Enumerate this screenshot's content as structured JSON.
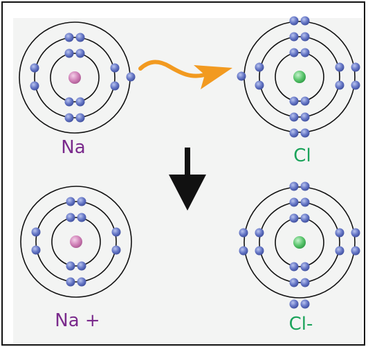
{
  "colors": {
    "sodium_nucleus": "#cf7fb6",
    "chlorine_nucleus": "#58c46b",
    "electron": "#6273c4",
    "shell": "#111111",
    "transfer_arrow": "#f29a20",
    "reaction_arrow": "#111111",
    "sodium_label": "#7a2a8c",
    "chlorine_label": "#1aa35a"
  },
  "atoms": [
    {
      "id": "na",
      "label": "Na",
      "electron_config": [
        2,
        8,
        1
      ]
    },
    {
      "id": "cl",
      "label": "Cl",
      "electron_config": [
        2,
        8,
        7
      ]
    },
    {
      "id": "na_ion",
      "label": "Na +",
      "electron_config": [
        2,
        8
      ]
    },
    {
      "id": "cl_ion",
      "label": "Cl-",
      "electron_config": [
        2,
        8,
        8
      ]
    }
  ],
  "icons": {
    "transfer_arrow": "curved-arrow-icon",
    "reaction_arrow": "down-arrow-icon"
  }
}
